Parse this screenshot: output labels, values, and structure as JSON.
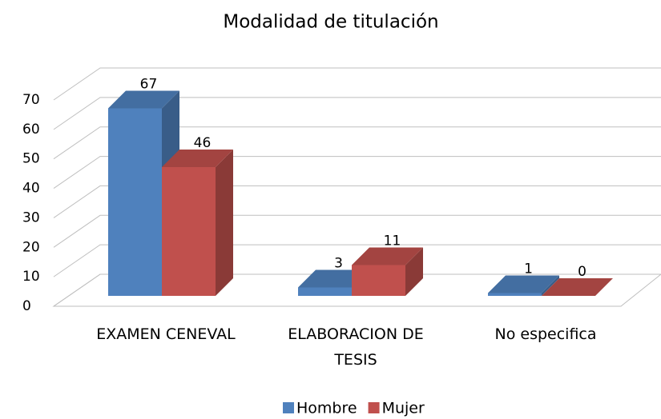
{
  "chart_data": {
    "type": "bar3d",
    "title": "Modalidad de titulación",
    "categories": [
      "EXAMEN CENEVAL",
      "ELABORACION DE TESIS",
      "No especifica"
    ],
    "series": [
      {
        "name": "Hombre",
        "color": "#4f81bd",
        "values": [
          67,
          3,
          1
        ]
      },
      {
        "name": "Mujer",
        "color": "#c0504d",
        "values": [
          46,
          11,
          0
        ]
      }
    ],
    "ylim": [
      0,
      70
    ],
    "yticks": [
      0,
      10,
      20,
      30,
      40,
      50,
      60,
      70
    ],
    "grid": true,
    "legend": "bottom"
  }
}
